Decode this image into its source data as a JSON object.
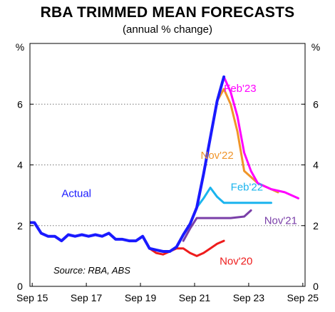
{
  "title": "RBA TRIMMED MEAN FORECASTS",
  "subtitle": "(annual % change)",
  "chart_data": {
    "type": "line",
    "ylabel_left": "%",
    "ylabel_right": "%",
    "ylim": [
      0,
      8
    ],
    "xlim": [
      2015.583,
      2025.75
    ],
    "y_ticks": [
      0,
      2,
      4,
      6
    ],
    "x_ticks": [
      {
        "label": "Sep 15",
        "x": 2015.667
      },
      {
        "label": "Sep 17",
        "x": 2017.667
      },
      {
        "label": "Sep 19",
        "x": 2019.667
      },
      {
        "label": "Sep 21",
        "x": 2021.667
      },
      {
        "label": "Sep 23",
        "x": 2023.667
      },
      {
        "label": "Sep 25",
        "x": 2025.667
      }
    ],
    "grid": "horizontal dotted",
    "source": "Source: RBA, ABS",
    "series": [
      {
        "name": "Actual",
        "color": "#1a1aff",
        "x": [
          2015.5,
          2015.75,
          2016.0,
          2016.25,
          2016.5,
          2016.75,
          2017.0,
          2017.25,
          2017.5,
          2017.75,
          2018.0,
          2018.25,
          2018.5,
          2018.75,
          2019.0,
          2019.25,
          2019.5,
          2019.75,
          2020.0,
          2020.25,
          2020.5,
          2020.75,
          2021.0,
          2021.25,
          2021.5,
          2021.75,
          2022.0,
          2022.25,
          2022.5,
          2022.75
        ],
        "y": [
          2.1,
          2.1,
          1.75,
          1.65,
          1.65,
          1.5,
          1.7,
          1.65,
          1.7,
          1.65,
          1.7,
          1.65,
          1.75,
          1.55,
          1.55,
          1.5,
          1.5,
          1.65,
          1.25,
          1.2,
          1.15,
          1.15,
          1.3,
          1.7,
          2.05,
          2.6,
          3.7,
          4.9,
          6.1,
          6.9
        ]
      },
      {
        "name": "Feb'23",
        "color": "#ff00ff",
        "x": [
          2022.75,
          2023.0,
          2023.25,
          2023.5,
          2023.75,
          2024.0,
          2024.5,
          2025.0,
          2025.5
        ],
        "y": [
          6.9,
          6.4,
          5.6,
          4.4,
          3.8,
          3.4,
          3.2,
          3.1,
          2.9
        ]
      },
      {
        "name": "Nov'22",
        "color": "#f0952a",
        "x": [
          2022.5,
          2022.75,
          2023.0,
          2023.25,
          2023.5,
          2023.75,
          2024.0,
          2024.5,
          2024.75
        ],
        "y": [
          6.1,
          6.5,
          6.0,
          5.1,
          3.8,
          3.6,
          3.4,
          3.2,
          3.1
        ]
      },
      {
        "name": "Feb'22",
        "color": "#1ab4ee",
        "x": [
          2021.75,
          2022.0,
          2022.25,
          2022.5,
          2022.75,
          2023.0,
          2023.5,
          2024.0,
          2024.5
        ],
        "y": [
          2.6,
          2.9,
          3.25,
          2.95,
          2.75,
          2.75,
          2.75,
          2.75,
          2.75
        ]
      },
      {
        "name": "Nov'21",
        "color": "#7a3fa8",
        "x": [
          2021.25,
          2021.5,
          2021.75,
          2022.0,
          2022.5,
          2023.0,
          2023.5,
          2023.75
        ],
        "y": [
          1.5,
          1.9,
          2.25,
          2.25,
          2.25,
          2.25,
          2.3,
          2.5
        ]
      },
      {
        "name": "Nov'20",
        "color": "#ee1c1c",
        "x": [
          2020.0,
          2020.25,
          2020.5,
          2020.75,
          2021.0,
          2021.25,
          2021.5,
          2021.75,
          2022.0,
          2022.25,
          2022.5,
          2022.75
        ],
        "y": [
          1.25,
          1.1,
          1.05,
          1.15,
          1.25,
          1.25,
          1.1,
          1.0,
          1.1,
          1.25,
          1.4,
          1.5
        ]
      }
    ]
  }
}
